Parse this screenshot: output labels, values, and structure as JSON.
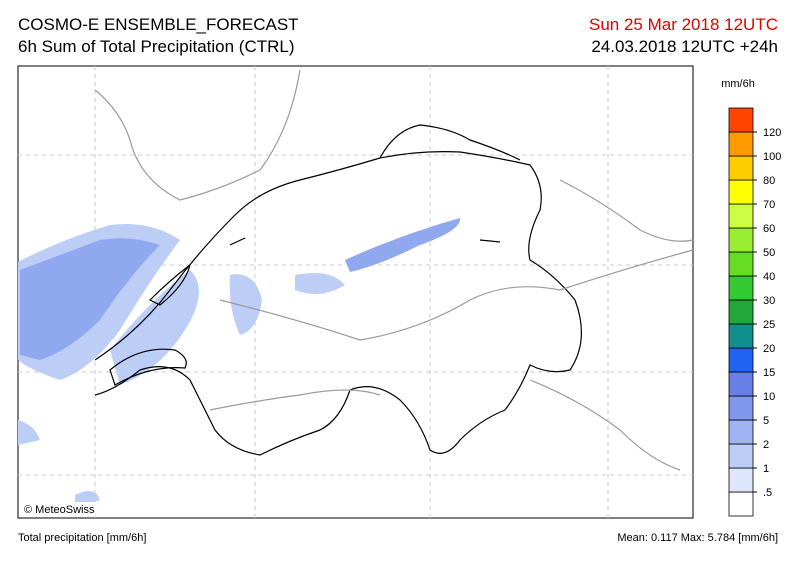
{
  "header": {
    "title": "COSMO-E ENSEMBLE_FORECAST",
    "subtitle": "6h Sum of Total Precipitation (CTRL)",
    "valid_time": "Sun 25 Mar 2018 12UTC",
    "run_time": "24.03.2018 12UTC +24h"
  },
  "map": {
    "copyright": "© MeteoSwiss"
  },
  "legend": {
    "unit": "mm/6h",
    "levels": [
      {
        "value": 0.5,
        "label": ".5"
      },
      1,
      2,
      5,
      10,
      15,
      20,
      25,
      30,
      40,
      50,
      60,
      70,
      80,
      100,
      120
    ],
    "colors": [
      "#ffffff",
      "#dde6fb",
      "#bccdf6",
      "#9fb4f1",
      "#8197ee",
      "#6a7ee8",
      "#1f63f0",
      "#129090",
      "#22a83a",
      "#33c933",
      "#66dd22",
      "#99ee33",
      "#ccff44",
      "#ffff00",
      "#ffcc00",
      "#ff9900",
      "#ff4400"
    ]
  },
  "footer": {
    "left": "Total precipitation [mm/6h]",
    "mean_label": "Mean:",
    "mean": 0.117,
    "max_label": "Max:",
    "max": 5.784,
    "unit": "[mm/6h]"
  }
}
